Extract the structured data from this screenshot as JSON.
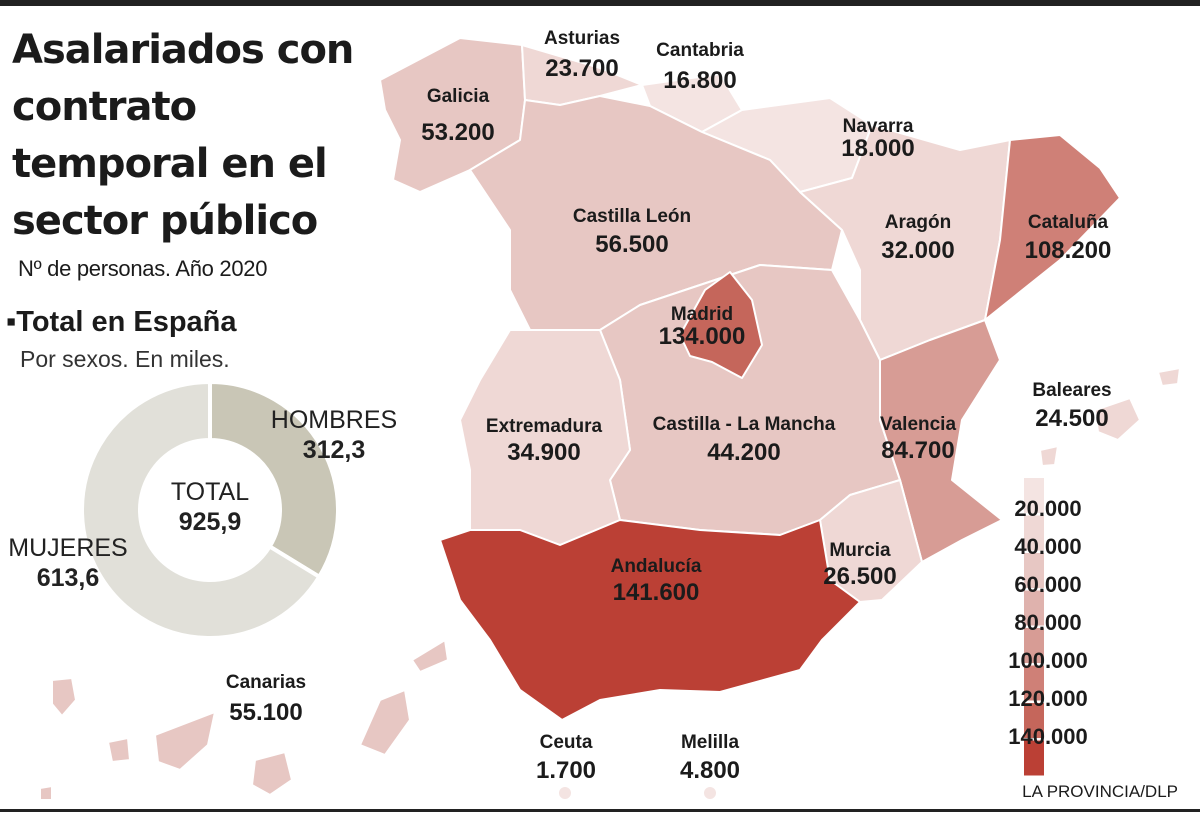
{
  "title": "Asalariados con contrato temporal en el sector público",
  "subtitle": "Nº de personas. Año 2020",
  "colors": {
    "scale": [
      "#f4e4e2",
      "#efd8d5",
      "#e7c7c3",
      "#dfb2ad",
      "#d79c95",
      "#cf8077",
      "#c5665b",
      "#bb4035"
    ],
    "donut_hombres": "#c9c6b6",
    "donut_mujeres": "#e1e0d9"
  },
  "regions": [
    {
      "id": "galicia",
      "name": "Galicia",
      "value": "53.200",
      "n": 53200
    },
    {
      "id": "asturias",
      "name": "Asturias",
      "value": "23.700",
      "n": 23700
    },
    {
      "id": "cantabria",
      "name": "Cantabria",
      "value": "16.800",
      "n": 16800
    },
    {
      "id": "navarra",
      "name": "Navarra",
      "value": "18.000",
      "n": 18000
    },
    {
      "id": "castilla-leon",
      "name": "Castilla León",
      "value": "56.500",
      "n": 56500
    },
    {
      "id": "aragon",
      "name": "Aragón",
      "value": "32.000",
      "n": 32000
    },
    {
      "id": "cataluna",
      "name": "Cataluña",
      "value": "108.200",
      "n": 108200
    },
    {
      "id": "madrid",
      "name": "Madrid",
      "value": "134.000",
      "n": 134000
    },
    {
      "id": "extremadura",
      "name": "Extremadura",
      "value": "34.900",
      "n": 34900
    },
    {
      "id": "castilla-la-mancha",
      "name": "Castilla - La Mancha",
      "value": "44.200",
      "n": 44200
    },
    {
      "id": "valencia",
      "name": "Valencia",
      "value": "84.700",
      "n": 84700
    },
    {
      "id": "baleares",
      "name": "Baleares",
      "value": "24.500",
      "n": 24500
    },
    {
      "id": "murcia",
      "name": "Murcia",
      "value": "26.500",
      "n": 26500
    },
    {
      "id": "andalucia",
      "name": "Andalucía",
      "value": "141.600",
      "n": 141600
    },
    {
      "id": "canarias",
      "name": "Canarias",
      "value": "55.100",
      "n": 55100
    },
    {
      "id": "ceuta",
      "name": "Ceuta",
      "value": "1.700",
      "n": 1700
    },
    {
      "id": "melilla",
      "name": "Melilla",
      "value": "4.800",
      "n": 4800
    }
  ],
  "legend": [
    "20.000",
    "40.000",
    "60.000",
    "80.000",
    "100.000",
    "120.000",
    "140.000"
  ],
  "donut": {
    "title": "Total en España",
    "subtitle": "Por sexos. En miles.",
    "total_label": "TOTAL",
    "total_value": "925,9",
    "segments": [
      {
        "label": "HOMBRES",
        "value": "312,3",
        "n": 312.3
      },
      {
        "label": "MUJERES",
        "value": "613,6",
        "n": 613.6
      }
    ]
  },
  "credit": "LA PROVINCIA/DLP"
}
